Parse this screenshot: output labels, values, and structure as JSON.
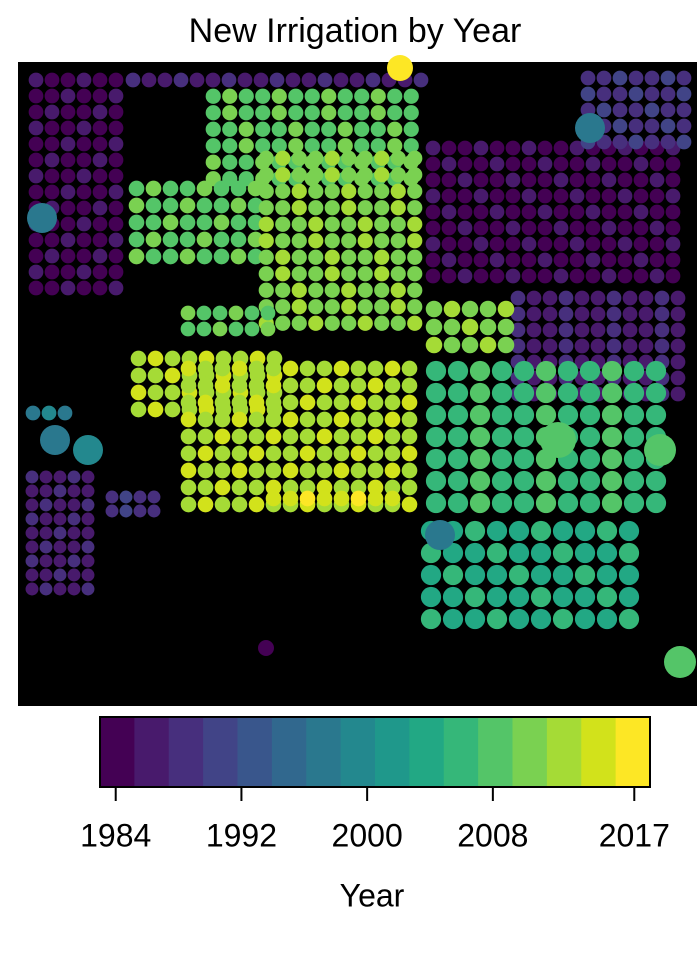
{
  "chart_data": {
    "type": "raster",
    "title": "New Irrigation by Year",
    "colorbar_label": "Year",
    "clim": [
      1983,
      2018
    ],
    "colors": [
      "#440154",
      "#481A6C",
      "#472F7D",
      "#414487",
      "#39568C",
      "#31688E",
      "#2A788E",
      "#23888E",
      "#1F988B",
      "#22A884",
      "#35B779",
      "#54C568",
      "#7AD151",
      "#A5DB36",
      "#D2E21B",
      "#FDE725"
    ],
    "ticks": [
      1984,
      1992,
      2000,
      2008,
      2017
    ]
  }
}
